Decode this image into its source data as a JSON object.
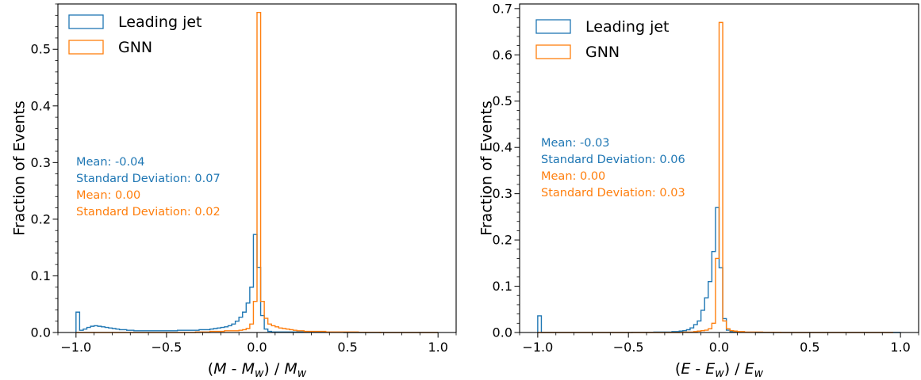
{
  "chart_data": [
    {
      "type": "histogram",
      "xlabel_parts": [
        "(",
        "M",
        " - ",
        "M",
        "w",
        ") / ",
        "M",
        "w"
      ],
      "ylabel": "Fraction of Events",
      "xlim": [
        -1.1,
        1.1
      ],
      "ylim": [
        0,
        0.58
      ],
      "xticks": [
        -1.0,
        -0.5,
        0.0,
        0.5,
        1.0
      ],
      "xtick_labels": [
        "−1.0",
        "−0.5",
        "0.0",
        "0.5",
        "1.0"
      ],
      "yticks": [
        0.0,
        0.1,
        0.2,
        0.3,
        0.4,
        0.5
      ],
      "ytick_labels": [
        "0.0",
        "0.1",
        "0.2",
        "0.3",
        "0.4",
        "0.5"
      ],
      "bins": {
        "start": -1.0,
        "width": 0.02,
        "count": 100
      },
      "legend_position": "top-left",
      "series": [
        {
          "name": "Leading jet",
          "color": "#1f77b4",
          "stats": [
            "Mean: -0.04",
            "Standard Deviation: 0.07"
          ],
          "values": [
            0.036,
            0.004,
            0.006,
            0.009,
            0.011,
            0.012,
            0.011,
            0.01,
            0.009,
            0.008,
            0.007,
            0.006,
            0.005,
            0.005,
            0.004,
            0.004,
            0.003,
            0.003,
            0.003,
            0.003,
            0.003,
            0.003,
            0.003,
            0.003,
            0.003,
            0.003,
            0.003,
            0.003,
            0.004,
            0.004,
            0.004,
            0.004,
            0.004,
            0.004,
            0.005,
            0.005,
            0.005,
            0.006,
            0.007,
            0.008,
            0.009,
            0.01,
            0.012,
            0.015,
            0.02,
            0.027,
            0.036,
            0.052,
            0.08,
            0.173,
            0.115,
            0.03,
            0.006,
            0.002,
            0.001,
            0.001,
            0.001,
            0.001,
            0.001,
            0.001,
            0.001,
            0.001,
            0.001,
            0.001,
            0.001,
            0.001,
            0.001,
            0.0005,
            0.0005,
            0.0005,
            0.0005,
            0.0005,
            0.0005,
            0.0005,
            0,
            0,
            0,
            0,
            0,
            0,
            0,
            0,
            0,
            0,
            0,
            0,
            0,
            0,
            0,
            0,
            0,
            0,
            0,
            0,
            0,
            0,
            0,
            0,
            0,
            0
          ]
        },
        {
          "name": "GNN",
          "color": "#ff7f0e",
          "stats": [
            "Mean: 0.00",
            "Standard Deviation: 0.02"
          ],
          "values": [
            0,
            0,
            0,
            0,
            0,
            0,
            0,
            0,
            0,
            0,
            0,
            0,
            0,
            0,
            0,
            0,
            0,
            0,
            0,
            0,
            0,
            0,
            0,
            0,
            0,
            0,
            0,
            0,
            0,
            0,
            0,
            0,
            0,
            0.001,
            0.001,
            0.001,
            0.001,
            0.002,
            0.002,
            0.002,
            0.002,
            0.003,
            0.003,
            0.003,
            0.003,
            0.004,
            0.005,
            0.007,
            0.015,
            0.055,
            0.565,
            0.055,
            0.025,
            0.015,
            0.012,
            0.01,
            0.008,
            0.007,
            0.006,
            0.005,
            0.004,
            0.003,
            0.003,
            0.002,
            0.002,
            0.002,
            0.002,
            0.002,
            0.002,
            0.001,
            0.001,
            0.001,
            0.001,
            0.001,
            0.001,
            0.001,
            0.001,
            0.001,
            0.0005,
            0.0005,
            0.0005,
            0.0005,
            0.0005,
            0.0005,
            0,
            0,
            0,
            0,
            0,
            0,
            0,
            0,
            0,
            0,
            0,
            0,
            0,
            0,
            0,
            0
          ]
        }
      ]
    },
    {
      "type": "histogram",
      "xlabel_parts": [
        "(",
        "E",
        " - ",
        "E",
        "w",
        ") / ",
        "E",
        "w"
      ],
      "ylabel": "Fraction of Events",
      "xlim": [
        -1.1,
        1.1
      ],
      "ylim": [
        0,
        0.71
      ],
      "xticks": [
        -1.0,
        -0.5,
        0.0,
        0.5,
        1.0
      ],
      "xtick_labels": [
        "−1.0",
        "−0.5",
        "0.0",
        "0.5",
        "1.0"
      ],
      "yticks": [
        0.0,
        0.1,
        0.2,
        0.3,
        0.4,
        0.5,
        0.6,
        0.7
      ],
      "ytick_labels": [
        "0.0",
        "0.1",
        "0.2",
        "0.3",
        "0.4",
        "0.5",
        "0.6",
        "0.7"
      ],
      "bins": {
        "start": -1.0,
        "width": 0.02,
        "count": 100
      },
      "legend_position": "top-left",
      "series": [
        {
          "name": "Leading jet",
          "color": "#1f77b4",
          "stats": [
            "Mean: -0.03",
            "Standard Deviation: 0.06"
          ],
          "values": [
            0.036,
            0,
            0,
            0,
            0,
            0,
            0,
            0,
            0,
            0,
            0,
            0,
            0,
            0,
            0,
            0,
            0,
            0,
            0,
            0,
            0,
            0,
            0,
            0,
            0,
            0,
            0.0005,
            0.0005,
            0.0005,
            0.0005,
            0.0005,
            0.0005,
            0.001,
            0.001,
            0.001,
            0.001,
            0.001,
            0.002,
            0.002,
            0.003,
            0.004,
            0.006,
            0.01,
            0.017,
            0.025,
            0.048,
            0.075,
            0.11,
            0.175,
            0.27,
            0.14,
            0.03,
            0.005,
            0.002,
            0.001,
            0.001,
            0.0005,
            0.0005,
            0.0005,
            0.0005,
            0,
            0,
            0,
            0,
            0,
            0,
            0,
            0,
            0,
            0,
            0,
            0,
            0,
            0,
            0,
            0,
            0,
            0,
            0,
            0,
            0,
            0,
            0,
            0,
            0,
            0,
            0,
            0,
            0,
            0,
            0,
            0,
            0,
            0,
            0,
            0,
            0,
            0,
            0,
            0
          ]
        },
        {
          "name": "GNN",
          "color": "#ff7f0e",
          "stats": [
            "Mean: 0.00",
            "Standard Deviation: 0.03"
          ],
          "values": [
            0,
            0,
            0,
            0,
            0,
            0,
            0,
            0,
            0,
            0,
            0,
            0,
            0,
            0,
            0,
            0,
            0,
            0,
            0,
            0,
            0,
            0,
            0,
            0,
            0,
            0,
            0,
            0,
            0,
            0,
            0,
            0,
            0,
            0,
            0,
            0,
            0,
            0,
            0,
            0,
            0.001,
            0.001,
            0.001,
            0.002,
            0.003,
            0.004,
            0.005,
            0.008,
            0.02,
            0.16,
            0.67,
            0.025,
            0.008,
            0.004,
            0.003,
            0.002,
            0.002,
            0.001,
            0.001,
            0.001,
            0.001,
            0.001,
            0.0005,
            0.0005,
            0.0005,
            0.0005,
            0.0005,
            0,
            0,
            0,
            0,
            0,
            0,
            0,
            0,
            0,
            0,
            0,
            0,
            0,
            0,
            0,
            0,
            0,
            0,
            0,
            0,
            0,
            0,
            0,
            0,
            0,
            0,
            0,
            0,
            0,
            0,
            0
          ]
        }
      ]
    }
  ]
}
